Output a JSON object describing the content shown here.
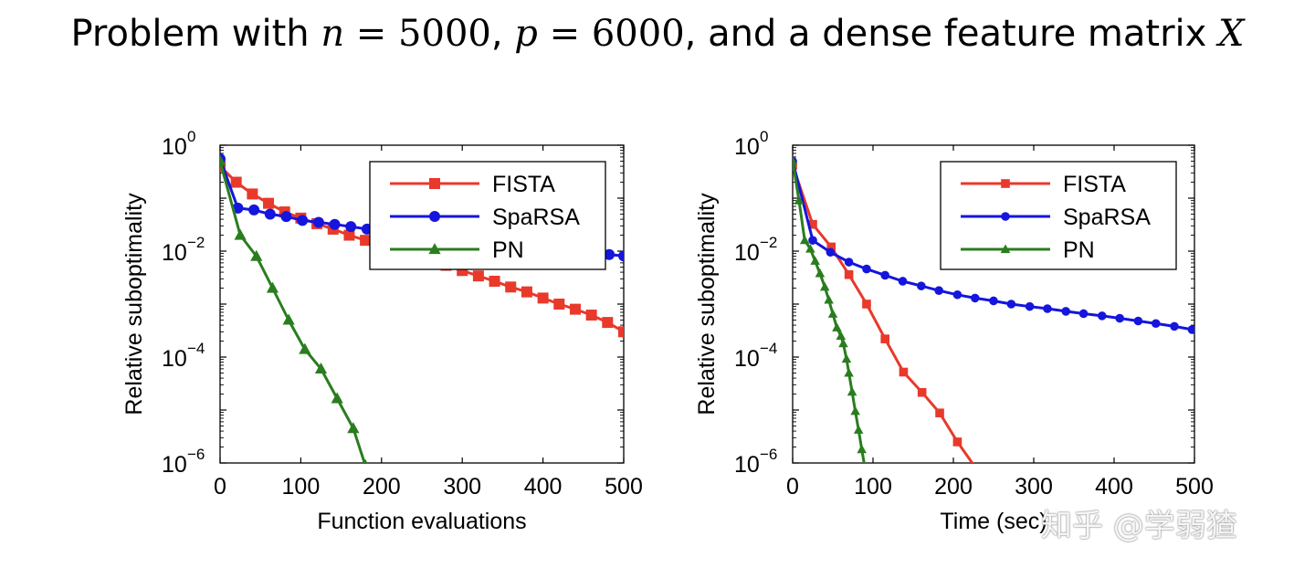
{
  "page": {
    "title_prefix": "Problem with ",
    "title_n": "n",
    "title_eq1": " = ",
    "title_n_val": "5000",
    "title_mid": ", ",
    "title_p": "p",
    "title_eq2": " = ",
    "title_p_val": "6000",
    "title_suffix": ", and a dense feature matrix ",
    "title_X": "X"
  },
  "watermark": "知乎 @学弱猹",
  "chart_data": [
    {
      "type": "line",
      "xlabel": "Function evaluations",
      "ylabel": "Relative suboptimality",
      "xlim": [
        0,
        500
      ],
      "ylim": [
        1e-06,
        1
      ],
      "yscale": "log",
      "xticks": [
        "0",
        "100",
        "200",
        "300",
        "400",
        "500"
      ],
      "yticks": [
        {
          "base": "10",
          "exp": "0"
        },
        {
          "base": "10",
          "exp": "−2"
        },
        {
          "base": "10",
          "exp": "−4"
        },
        {
          "base": "10",
          "exp": "−6"
        }
      ],
      "legend_position": "top-right",
      "series": [
        {
          "name": "FISTA",
          "color": "#e8392b",
          "marker": "square",
          "points": [
            [
              0,
              0.4
            ],
            [
              20,
              0.2
            ],
            [
              40,
              0.12
            ],
            [
              60,
              0.08
            ],
            [
              80,
              0.055
            ],
            [
              100,
              0.042
            ],
            [
              120,
              0.033
            ],
            [
              140,
              0.026
            ],
            [
              160,
              0.02
            ],
            [
              180,
              0.016
            ],
            [
              200,
              0.013
            ],
            [
              220,
              0.0105
            ],
            [
              240,
              0.0085
            ],
            [
              260,
              0.0068
            ],
            [
              280,
              0.0054
            ],
            [
              300,
              0.0043
            ],
            [
              320,
              0.0034
            ],
            [
              340,
              0.0027
            ],
            [
              360,
              0.0021
            ],
            [
              380,
              0.0017
            ],
            [
              400,
              0.0013
            ],
            [
              420,
              0.001
            ],
            [
              440,
              0.0008
            ],
            [
              460,
              0.00062
            ],
            [
              480,
              0.00045
            ],
            [
              500,
              0.0003
            ]
          ]
        },
        {
          "name": "SpaRSA",
          "color": "#1515dd",
          "marker": "circle",
          "points": [
            [
              0,
              0.55
            ],
            [
              22,
              0.065
            ],
            [
              42,
              0.06
            ],
            [
              62,
              0.05
            ],
            [
              82,
              0.045
            ],
            [
              102,
              0.038
            ],
            [
              122,
              0.035
            ],
            [
              142,
              0.032
            ],
            [
              162,
              0.029
            ],
            [
              182,
              0.026
            ],
            [
              202,
              0.024
            ],
            [
              222,
              0.022
            ],
            [
              242,
              0.02
            ],
            [
              262,
              0.0185
            ],
            [
              282,
              0.017
            ],
            [
              302,
              0.0155
            ],
            [
              322,
              0.0145
            ],
            [
              342,
              0.0135
            ],
            [
              362,
              0.0125
            ],
            [
              382,
              0.0117
            ],
            [
              402,
              0.011
            ],
            [
              422,
              0.0103
            ],
            [
              442,
              0.0097
            ],
            [
              462,
              0.0091
            ],
            [
              482,
              0.0086
            ],
            [
              500,
              0.0081
            ]
          ]
        },
        {
          "name": "PN",
          "color": "#2a7d1f",
          "marker": "triangle",
          "points": [
            [
              0,
              0.5
            ],
            [
              25,
              0.02
            ],
            [
              45,
              0.008
            ],
            [
              65,
              0.002
            ],
            [
              85,
              0.0005
            ],
            [
              105,
              0.00014
            ],
            [
              125,
              6e-05
            ],
            [
              145,
              1.65e-05
            ],
            [
              165,
              4.5e-06
            ],
            [
              180,
              9e-07
            ]
          ]
        }
      ]
    },
    {
      "type": "line",
      "xlabel": "Time (sec)",
      "ylabel": "Relative suboptimality",
      "xlim": [
        0,
        500
      ],
      "ylim": [
        1e-06,
        1
      ],
      "yscale": "log",
      "xticks": [
        "0",
        "100",
        "200",
        "300",
        "400",
        "500"
      ],
      "yticks": [
        {
          "base": "10",
          "exp": "0"
        },
        {
          "base": "10",
          "exp": "−2"
        },
        {
          "base": "10",
          "exp": "−4"
        },
        {
          "base": "10",
          "exp": "−6"
        }
      ],
      "legend_position": "top-right",
      "series": [
        {
          "name": "FISTA",
          "color": "#e8392b",
          "marker": "square",
          "points": [
            [
              0,
              0.42
            ],
            [
              25,
              0.032
            ],
            [
              48,
              0.012
            ],
            [
              70,
              0.0036
            ],
            [
              92,
              0.001
            ],
            [
              115,
              0.00022
            ],
            [
              138,
              5.2e-05
            ],
            [
              161,
              2.15e-05
            ],
            [
              183,
              8.8e-06
            ],
            [
              205,
              2.5e-06
            ],
            [
              228,
              8e-07
            ]
          ]
        },
        {
          "name": "SpaRSA",
          "color": "#1515dd",
          "marker": "circle",
          "points": [
            [
              0,
              0.5
            ],
            [
              25,
              0.016
            ],
            [
              47,
              0.0095
            ],
            [
              70,
              0.0062
            ],
            [
              92,
              0.0046
            ],
            [
              115,
              0.0035
            ],
            [
              137,
              0.0027
            ],
            [
              160,
              0.0022
            ],
            [
              182,
              0.0018
            ],
            [
              205,
              0.0015
            ],
            [
              227,
              0.0013
            ],
            [
              250,
              0.00115
            ],
            [
              272,
              0.001
            ],
            [
              295,
              0.0009
            ],
            [
              317,
              0.00082
            ],
            [
              340,
              0.00073
            ],
            [
              362,
              0.00066
            ],
            [
              385,
              0.0006
            ],
            [
              407,
              0.00054
            ],
            [
              430,
              0.00048
            ],
            [
              452,
              0.00043
            ],
            [
              475,
              0.00038
            ],
            [
              497,
              0.00033
            ]
          ]
        },
        {
          "name": "PN",
          "color": "#2a7d1f",
          "marker": "triangle",
          "points": [
            [
              0,
              0.5
            ],
            [
              8,
              0.09
            ],
            [
              15,
              0.016
            ],
            [
              22,
              0.011
            ],
            [
              28,
              0.0065
            ],
            [
              34,
              0.0038
            ],
            [
              40,
              0.0021
            ],
            [
              45,
              0.0012
            ],
            [
              50,
              0.00065
            ],
            [
              55,
              0.00036
            ],
            [
              60,
              0.00025
            ],
            [
              63,
              0.00018
            ],
            [
              67,
              9.2e-05
            ],
            [
              70,
              5e-05
            ],
            [
              74,
              2.2e-05
            ],
            [
              78,
              9.5e-06
            ],
            [
              82,
              4.2e-06
            ],
            [
              86,
              1.8e-06
            ],
            [
              90,
              8e-07
            ]
          ]
        }
      ]
    }
  ]
}
